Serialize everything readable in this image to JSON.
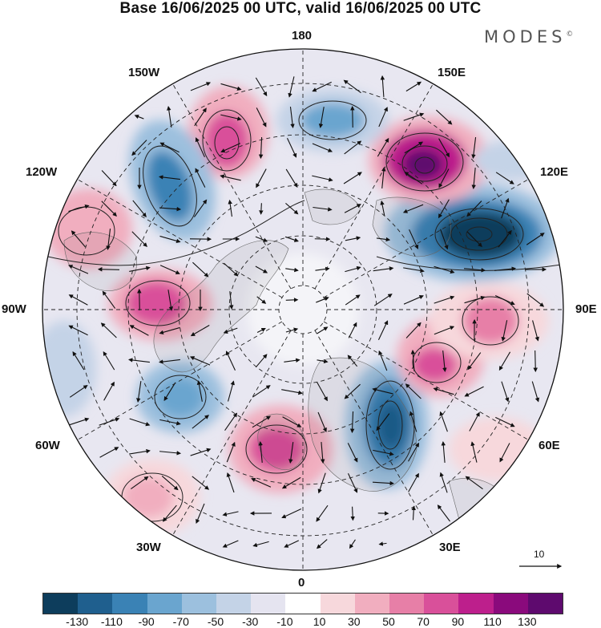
{
  "title": "Base 16/06/2025 00 UTC, valid 16/06/2025 00 UTC",
  "brand": {
    "name": "MODES",
    "mark": "©"
  },
  "lon_labels": [
    "180",
    "150E",
    "120E",
    "90E",
    "60E",
    "30E",
    "0",
    "30W",
    "60W",
    "90W",
    "120W",
    "150W"
  ],
  "vector_scale": {
    "label": "10"
  },
  "colorbar": {
    "colors": [
      "#0d3d5c",
      "#1f5f8e",
      "#3a82b5",
      "#6aa5cf",
      "#9cc0de",
      "#c4d3e7",
      "#e5e4f0",
      "#ffffff",
      "#f7d8dc",
      "#f1aebf",
      "#e77fa7",
      "#d9509a",
      "#bd1f8c",
      "#8a0a7c",
      "#5e0a6e"
    ],
    "ticks": [
      "-130",
      "-110",
      "-90",
      "-70",
      "-50",
      "-30",
      "-10",
      "10",
      "30",
      "50",
      "70",
      "90",
      "110",
      "130"
    ]
  },
  "anomaly_centers": [
    {
      "lon_sector": "120E",
      "value": -130
    },
    {
      "lon_sector": "150E",
      "value": 120
    },
    {
      "lon_sector": "170E",
      "value": -80
    },
    {
      "lon_sector": "160W",
      "value": 100
    },
    {
      "lon_sector": "140W",
      "value": -80
    },
    {
      "lon_sector": "115W",
      "value": 50
    },
    {
      "lon_sector": "95W",
      "value": 80
    },
    {
      "lon_sector": "55W",
      "value": -60
    },
    {
      "lon_sector": "20W",
      "value": 30
    },
    {
      "lon_sector": "10W",
      "value": 70
    },
    {
      "lon_sector": "25E",
      "value": -100
    },
    {
      "lon_sector": "60E",
      "value": 70
    },
    {
      "lon_sector": "85E",
      "value": 70
    }
  ]
}
